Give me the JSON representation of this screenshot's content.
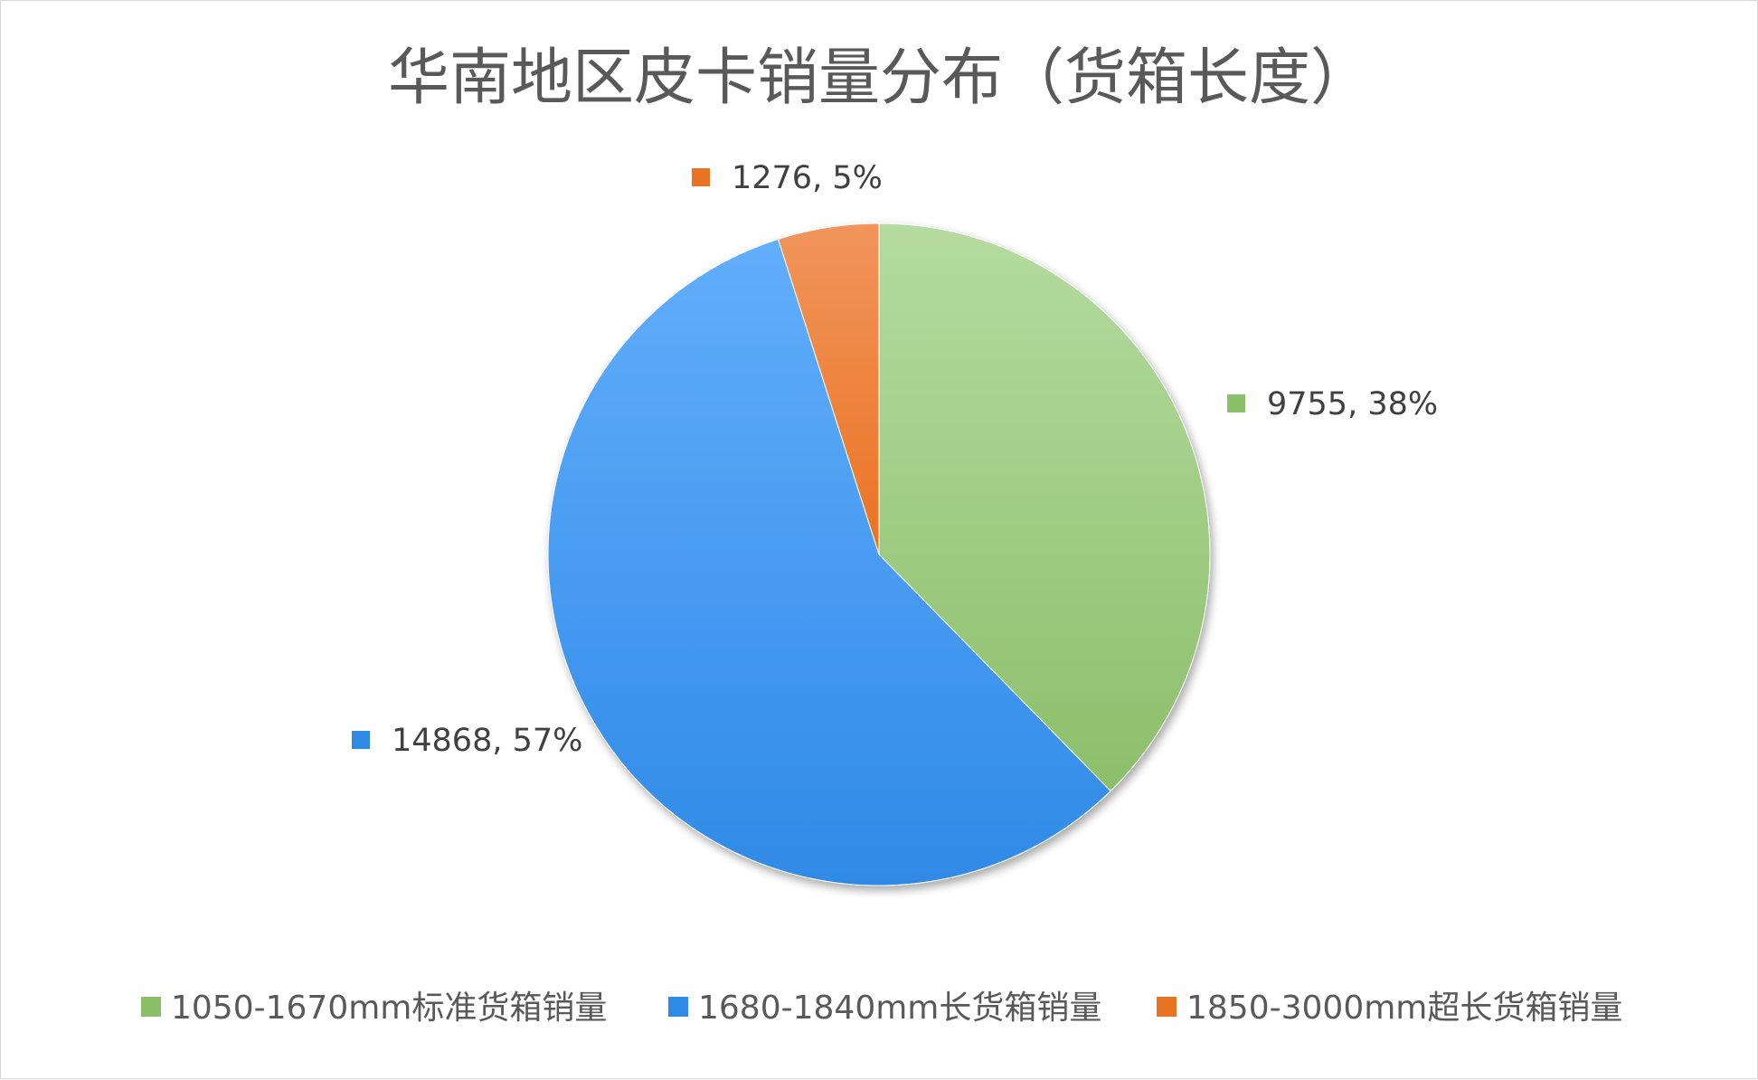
{
  "colors": {
    "green_light": "#b5dba0",
    "green_dark": "#8cbf6a",
    "blue_light": "#62aefc",
    "blue_dark": "#2f8ae6",
    "orange_light": "#f1955c",
    "orange_dark": "#ea7322",
    "title_color": "#595959",
    "label_color": "#404040",
    "border_color": "#d9d9d9"
  },
  "chart_data": {
    "type": "pie",
    "title": "华南地区皮卡销量分布（货箱长度）",
    "start_angle_deg": 0,
    "direction": "clockwise",
    "legend_position": "bottom",
    "slices": [
      {
        "name": "1050-1670mm标准货箱销量",
        "value": 9755,
        "percent": "38%",
        "label": "9755, 38%",
        "color_key": "green"
      },
      {
        "name": "1680-1840mm长货箱销量",
        "value": 14868,
        "percent": "57%",
        "label": "14868, 57%",
        "color_key": "blue"
      },
      {
        "name": "1850-3000mm超长货箱销量",
        "value": 1276,
        "percent": "5%",
        "label": "1276, 5%",
        "color_key": "orange"
      }
    ]
  }
}
